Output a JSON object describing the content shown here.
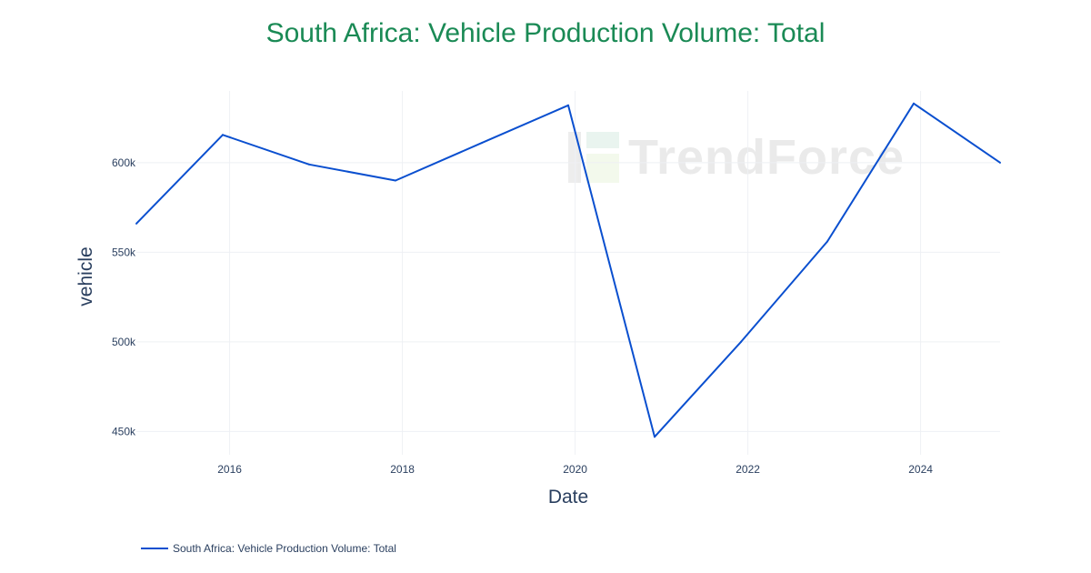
{
  "watermark": {
    "text": "TrendForce"
  },
  "chart_data": {
    "type": "line",
    "title": "South Africa: Vehicle Production Volume: Total",
    "xlabel": "Date",
    "ylabel": "vehicle",
    "xlim": [
      2014.92,
      2024.92
    ],
    "ylim": [
      437000,
      640000
    ],
    "x_ticks": [
      2016,
      2018,
      2020,
      2022,
      2024
    ],
    "y_ticks": [
      450000,
      500000,
      550000,
      600000
    ],
    "y_tick_labels": [
      "450k",
      "500k",
      "550k",
      "600k"
    ],
    "grid": true,
    "legend_position": "bottom-left",
    "series": [
      {
        "name": "South Africa: Vehicle Production Volume: Total",
        "color": "#0a4fcf",
        "x": [
          2014.92,
          2015.92,
          2016.92,
          2017.92,
          2018.92,
          2019.92,
          2020.92,
          2021.92,
          2022.92,
          2023.92,
          2024.92
        ],
        "y": [
          566000,
          615500,
          599000,
          590000,
          611000,
          632000,
          447000,
          500000,
          556000,
          633000,
          600000
        ]
      }
    ]
  }
}
